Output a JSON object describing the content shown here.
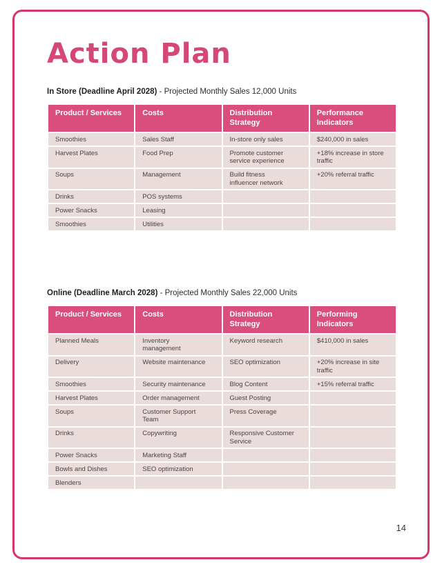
{
  "colors": {
    "accent": "#d5346e",
    "title": "#d34878",
    "header-bg": "#d94e7c",
    "header-text": "#ffffff",
    "row-bg": "#e9dcdb",
    "body-text": "#4c4444",
    "heading-text": "#1f1f1f",
    "page-bg": "#ffffff"
  },
  "page": {
    "title": "Action Plan",
    "number": "14"
  },
  "sections": [
    {
      "heading_bold": "In Store (Deadline April 2028)",
      "heading_rest": " - Projected Monthly Sales 12,000 Units",
      "columns": [
        "Product / Services",
        "Costs",
        "Distribution\nStrategy",
        "Performance\nIndicators"
      ],
      "rows": [
        [
          "Smoothies",
          "Sales Staff",
          "In-store only sales",
          "$240,000 in sales"
        ],
        [
          "Harvest Plates",
          "Food Prep",
          "Promote customer\nservice experience",
          "+18% increase in store\ntraffic"
        ],
        [
          "Soups",
          "Management",
          "Build fitness\ninfluencer network",
          "+20% referral traffic"
        ],
        [
          "Drinks",
          "POS systems",
          "",
          ""
        ],
        [
          "Power Snacks",
          "Leasing",
          "",
          ""
        ],
        [
          "Smoothies",
          "Utilities",
          "",
          ""
        ]
      ]
    },
    {
      "heading_bold": "Online (Deadline March 2028)",
      "heading_rest": " - Projected Monthly Sales 22,000 Units",
      "columns": [
        "Product / Services",
        "Costs",
        "Distribution\nStrategy",
        "Performing\nIndicators"
      ],
      "rows": [
        [
          "Planned Meals",
          "Inventory\nmanagement",
          "Keyword research",
          "$410,000 in sales"
        ],
        [
          "Delivery",
          "Website maintenance",
          "SEO optimization",
          "+20% increase in site\ntraffic"
        ],
        [
          "Smoothies",
          "Security maintenance",
          "Blog Content",
          "+15% referral traffic"
        ],
        [
          "Harvest Plates",
          "Order management",
          "Guest Posting",
          ""
        ],
        [
          "Soups",
          "Customer Support\nTeam",
          "Press Coverage",
          ""
        ],
        [
          "Drinks",
          "Copywriting",
          "Responsive Customer\nService",
          ""
        ],
        [
          "Power Snacks",
          "Marketing Staff",
          "",
          ""
        ],
        [
          "Bowls and Dishes",
          "SEO optimization",
          "",
          ""
        ],
        [
          "Blenders",
          "",
          "",
          ""
        ]
      ]
    }
  ]
}
